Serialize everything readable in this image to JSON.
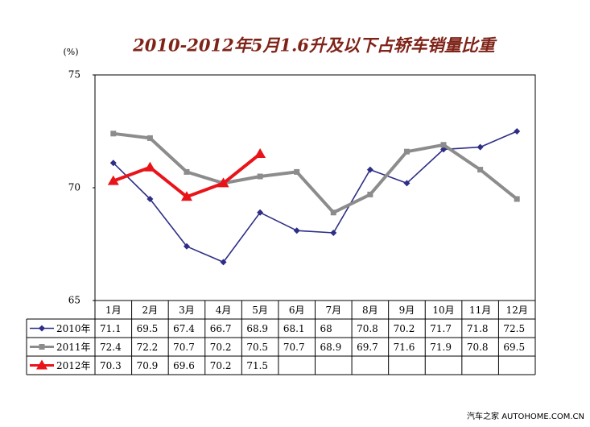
{
  "chart_data": {
    "type": "line",
    "title": "2010-2012年5月1.6升及以下占轿车销量比重",
    "y_unit": "(%)",
    "categories": [
      "1月",
      "2月",
      "3月",
      "4月",
      "5月",
      "6月",
      "7月",
      "8月",
      "9月",
      "10月",
      "11月",
      "12月"
    ],
    "series": [
      {
        "name": "2010年",
        "color": "#2e2e86",
        "marker": "diamond",
        "values": [
          71.1,
          69.5,
          67.4,
          66.7,
          68.9,
          68.1,
          68.0,
          70.8,
          70.2,
          71.7,
          71.8,
          72.5
        ]
      },
      {
        "name": "2011年",
        "color": "#8c8c8c",
        "marker": "square",
        "values": [
          72.4,
          72.2,
          70.7,
          70.2,
          70.5,
          70.7,
          68.9,
          69.7,
          71.6,
          71.9,
          70.8,
          69.5
        ]
      },
      {
        "name": "2012年",
        "color": "#e8141a",
        "marker": "triangle",
        "values": [
          70.3,
          70.9,
          69.6,
          70.2,
          71.5,
          null,
          null,
          null,
          null,
          null,
          null,
          null
        ]
      }
    ],
    "ylim": [
      65,
      75
    ],
    "yticks": [
      65,
      70,
      75
    ],
    "grid": false,
    "watermark": "汽车之家 AUTOHOME.COM.CN"
  }
}
